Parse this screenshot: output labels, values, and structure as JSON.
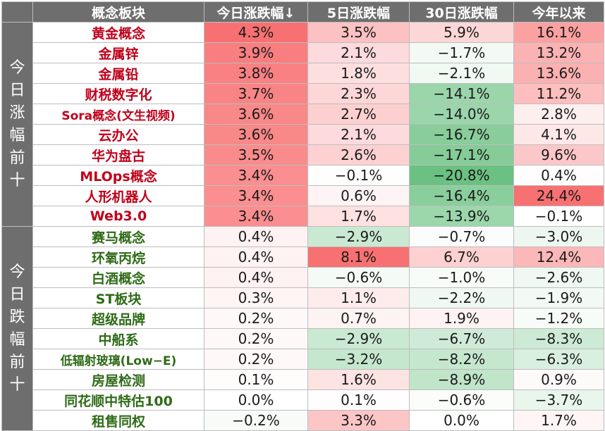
{
  "headers": {
    "name": "概念板块",
    "today": "今日涨跌幅↓",
    "day5": "5日涨跌幅",
    "day30": "30日涨跌幅",
    "ytd": "今年以来"
  },
  "groups": [
    {
      "label": "今日涨幅前十",
      "kind": "up",
      "rows": [
        {
          "name": "黄金概念",
          "today": "4.3%",
          "day5": "3.5%",
          "day30": "5.9%",
          "ytd": "16.1%"
        },
        {
          "name": "金属锌",
          "today": "3.9%",
          "day5": "2.1%",
          "day30": "−1.7%",
          "ytd": "13.2%"
        },
        {
          "name": "金属铅",
          "today": "3.8%",
          "day5": "1.8%",
          "day30": "−2.1%",
          "ytd": "13.6%"
        },
        {
          "name": "财税数字化",
          "today": "3.7%",
          "day5": "2.3%",
          "day30": "−14.1%",
          "ytd": "11.2%"
        },
        {
          "name": "Sora概念(文生视频)",
          "today": "3.6%",
          "day5": "2.7%",
          "day30": "−14.0%",
          "ytd": "2.8%"
        },
        {
          "name": "云办公",
          "today": "3.6%",
          "day5": "2.1%",
          "day30": "−16.7%",
          "ytd": "4.1%"
        },
        {
          "name": "华为盘古",
          "today": "3.5%",
          "day5": "2.6%",
          "day30": "−17.1%",
          "ytd": "9.6%"
        },
        {
          "name": "MLOps概念",
          "today": "3.4%",
          "day5": "−0.1%",
          "day30": "−20.8%",
          "ytd": "0.4%"
        },
        {
          "name": "人形机器人",
          "today": "3.4%",
          "day5": "0.6%",
          "day30": "−16.4%",
          "ytd": "24.4%"
        },
        {
          "name": "Web3.0",
          "today": "3.4%",
          "day5": "1.7%",
          "day30": "−13.9%",
          "ytd": "−0.1%"
        }
      ]
    },
    {
      "label": "今日跌幅前十",
      "kind": "down",
      "rows": [
        {
          "name": "赛马概念",
          "today": "0.4%",
          "day5": "−2.9%",
          "day30": "−0.7%",
          "ytd": "−3.0%"
        },
        {
          "name": "环氧丙烷",
          "today": "0.4%",
          "day5": "8.1%",
          "day30": "6.7%",
          "ytd": "12.4%"
        },
        {
          "name": "白酒概念",
          "today": "0.4%",
          "day5": "−0.6%",
          "day30": "−1.0%",
          "ytd": "−2.6%"
        },
        {
          "name": "ST板块",
          "today": "0.3%",
          "day5": "1.1%",
          "day30": "−2.2%",
          "ytd": "−1.9%"
        },
        {
          "name": "超级品牌",
          "today": "0.2%",
          "day5": "0.7%",
          "day30": "1.9%",
          "ytd": "−1.2%"
        },
        {
          "name": "中船系",
          "today": "0.2%",
          "day5": "−2.9%",
          "day30": "−6.7%",
          "ytd": "−8.3%"
        },
        {
          "name": "低辐射玻璃(Low−E)",
          "today": "0.2%",
          "day5": "−3.2%",
          "day30": "−8.2%",
          "ytd": "−6.3%"
        },
        {
          "name": "房屋检测",
          "today": "0.1%",
          "day5": "1.6%",
          "day30": "−8.9%",
          "ytd": "0.9%"
        },
        {
          "name": "同花顺中特估100",
          "today": "0.0%",
          "day5": "0.1%",
          "day30": "−0.6%",
          "ytd": "−3.7%"
        },
        {
          "name": "租售同权",
          "today": "−0.2%",
          "day5": "3.3%",
          "day30": "0.0%",
          "ytd": "1.7%"
        }
      ]
    }
  ],
  "colors": {
    "header_bg": "#6e6e6e",
    "up_text": "#c0001a",
    "down_text": "#2e6b17",
    "pos_strong": "#f8696b",
    "neg_strong": "#63be7b"
  }
}
